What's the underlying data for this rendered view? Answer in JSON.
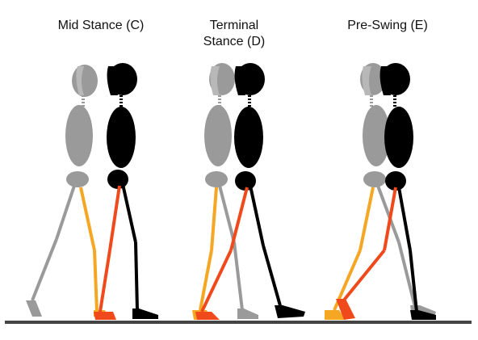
{
  "panels": [
    {
      "title": "Mid Stance (C)"
    },
    {
      "title": "Terminal\nStance (D)"
    },
    {
      "title": "Pre-Swing (E)"
    }
  ],
  "colors": {
    "ghost": "#9a9a9a",
    "body": "#000000",
    "ghost_limb": "#f5a623",
    "active_limb": "#f04a1c",
    "ground": "#444444"
  }
}
